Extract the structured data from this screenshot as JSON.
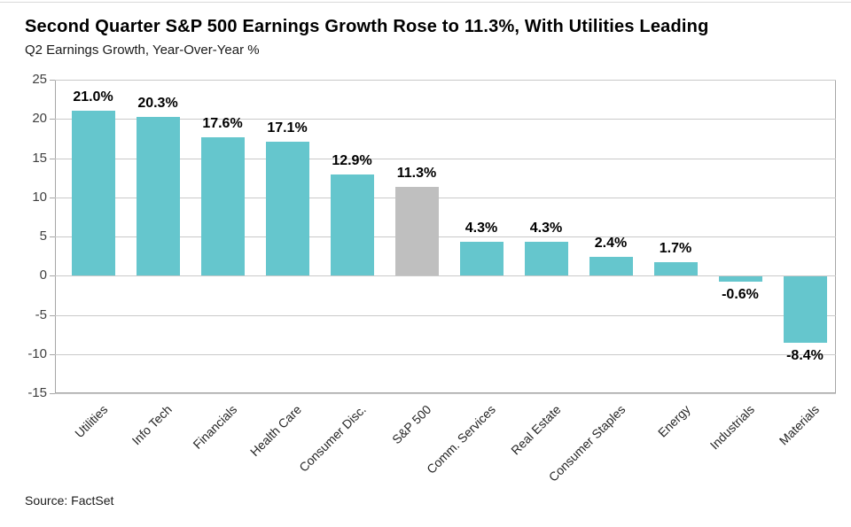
{
  "header": {
    "title": "Second Quarter S&P 500 Earnings Growth Rose to 11.3%, With Utilities Leading",
    "subtitle": "Q2 Earnings Growth, Year-Over-Year %"
  },
  "footer": {
    "source": "Source: FactSet"
  },
  "chart_data": {
    "type": "bar",
    "title": "Second Quarter S&P 500 Earnings Growth Rose to 11.3%, With Utilities Leading",
    "subtitle": "Q2 Earnings Growth, Year-Over-Year %",
    "categories": [
      "Utilities",
      "Info Tech",
      "Financials",
      "Health Care",
      "Consumer Disc.",
      "S&P 500",
      "Comm. Services",
      "Real Estate",
      "Consumer Staples",
      "Energy",
      "Industrials",
      "Materials"
    ],
    "values": [
      21.0,
      20.3,
      17.6,
      17.1,
      12.9,
      11.3,
      4.3,
      4.3,
      2.4,
      1.7,
      -0.6,
      -8.4
    ],
    "value_labels": [
      "21.0%",
      "20.3%",
      "17.6%",
      "17.1%",
      "12.9%",
      "11.3%",
      "4.3%",
      "4.3%",
      "2.4%",
      "1.7%",
      "-0.6%",
      "-8.4%"
    ],
    "ylim": [
      -15,
      25
    ],
    "yticks": [
      25,
      20,
      15,
      10,
      5,
      0,
      -5,
      -10,
      -15
    ],
    "ytick_labels": [
      "25",
      "20",
      "15",
      "10",
      "5",
      "0",
      "-5",
      "-10",
      "-15"
    ],
    "grid": true,
    "legend": "none",
    "bar_color": "#65C6CD",
    "highlight_color": "#BFBFBF",
    "highlight_index": 5,
    "source": "Source: FactSet"
  }
}
